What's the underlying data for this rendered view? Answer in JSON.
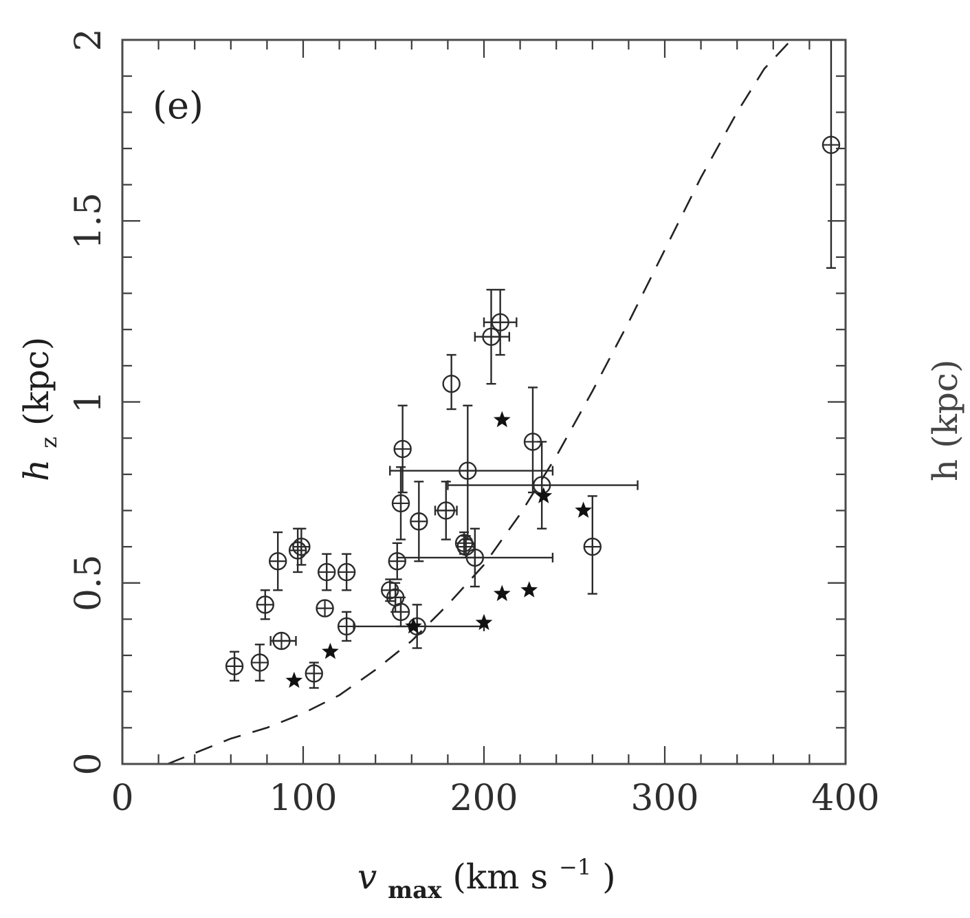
{
  "chart_data": {
    "type": "scatter",
    "panel_label": "(e)",
    "xlabel_main": "v",
    "xlabel_sub": "max",
    "xlabel_units": " (km s",
    "xlabel_sup": "−1",
    "xlabel_close": ")",
    "ylabel_main": "h",
    "ylabel_sub": "z",
    "ylabel_units": " (kpc)",
    "xlim": [
      0,
      400
    ],
    "ylim": [
      0,
      2
    ],
    "x_ticks": [
      0,
      100,
      200,
      300,
      400
    ],
    "x_tick_labels": [
      "0",
      "100",
      "200",
      "300",
      "400"
    ],
    "y_ticks": [
      0,
      0.5,
      1,
      1.5,
      2
    ],
    "y_tick_labels": [
      "0",
      "0.5",
      "1",
      "1.5",
      "2"
    ],
    "grid": false,
    "series": [
      {
        "marker": "circle-cross",
        "points": [
          {
            "x": 62,
            "y": 0.27,
            "ylo": 0.23,
            "yhi": 0.31,
            "xlo": null,
            "xhi": null
          },
          {
            "x": 76,
            "y": 0.28,
            "ylo": 0.23,
            "yhi": 0.33,
            "xlo": null,
            "xhi": null
          },
          {
            "x": 79,
            "y": 0.44,
            "ylo": 0.4,
            "yhi": 0.48,
            "xlo": null,
            "xhi": null
          },
          {
            "x": 86,
            "y": 0.56,
            "ylo": 0.48,
            "yhi": 0.64,
            "xlo": null,
            "xhi": null
          },
          {
            "x": 88,
            "y": 0.34,
            "ylo": null,
            "yhi": null,
            "xlo": 82,
            "xhi": 96
          },
          {
            "x": 97,
            "y": 0.59,
            "ylo": 0.53,
            "yhi": 0.65,
            "xlo": null,
            "xhi": null
          },
          {
            "x": 99,
            "y": 0.6,
            "ylo": 0.55,
            "yhi": 0.65,
            "xlo": null,
            "xhi": null
          },
          {
            "x": 106,
            "y": 0.25,
            "ylo": 0.21,
            "yhi": 0.28,
            "xlo": null,
            "xhi": null
          },
          {
            "x": 112,
            "y": 0.43,
            "ylo": null,
            "yhi": null,
            "xlo": null,
            "xhi": null
          },
          {
            "x": 113,
            "y": 0.53,
            "ylo": 0.48,
            "yhi": 0.58,
            "xlo": null,
            "xhi": null
          },
          {
            "x": 124,
            "y": 0.53,
            "ylo": 0.48,
            "yhi": 0.58,
            "xlo": null,
            "xhi": null
          },
          {
            "x": 124,
            "y": 0.38,
            "ylo": 0.34,
            "yhi": 0.42,
            "xlo": 128,
            "xhi": 200
          },
          {
            "x": 148,
            "y": 0.48,
            "ylo": 0.45,
            "yhi": 0.51,
            "xlo": null,
            "xhi": null
          },
          {
            "x": 151,
            "y": 0.46,
            "ylo": 0.42,
            "yhi": 0.5,
            "xlo": null,
            "xhi": null
          },
          {
            "x": 152,
            "y": 0.56,
            "ylo": 0.51,
            "yhi": 0.61,
            "xlo": null,
            "xhi": null
          },
          {
            "x": 154,
            "y": 0.42,
            "ylo": 0.38,
            "yhi": 0.46,
            "xlo": null,
            "xhi": null
          },
          {
            "x": 154,
            "y": 0.72,
            "ylo": 0.62,
            "yhi": 0.82,
            "xlo": null,
            "xhi": null
          },
          {
            "x": 155,
            "y": 0.87,
            "ylo": 0.75,
            "yhi": 0.99,
            "xlo": null,
            "xhi": null
          },
          {
            "x": 163,
            "y": 0.38,
            "ylo": 0.32,
            "yhi": 0.44,
            "xlo": null,
            "xhi": null
          },
          {
            "x": 164,
            "y": 0.67,
            "ylo": 0.56,
            "yhi": 0.78,
            "xlo": null,
            "xhi": null
          },
          {
            "x": 179,
            "y": 0.7,
            "ylo": 0.62,
            "yhi": 0.78,
            "xlo": 173,
            "xhi": 185
          },
          {
            "x": 189,
            "y": 0.61,
            "ylo": 0.58,
            "yhi": 0.64,
            "xlo": null,
            "xhi": null
          },
          {
            "x": 190,
            "y": 0.6,
            "ylo": 0.57,
            "yhi": 0.63,
            "xlo": null,
            "xhi": null
          },
          {
            "x": 191,
            "y": 0.81,
            "ylo": 0.62,
            "yhi": 0.99,
            "xlo": 148,
            "xhi": 238
          },
          {
            "x": 195,
            "y": 0.57,
            "ylo": 0.49,
            "yhi": 0.65,
            "xlo": 152,
            "xhi": 238
          },
          {
            "x": 204,
            "y": 1.18,
            "ylo": 1.05,
            "yhi": 1.31,
            "xlo": 195,
            "xhi": 214
          },
          {
            "x": 209,
            "y": 1.22,
            "ylo": 1.13,
            "yhi": 1.31,
            "xlo": 200,
            "xhi": 218
          },
          {
            "x": 227,
            "y": 0.89,
            "ylo": 0.75,
            "yhi": 1.04,
            "xlo": null,
            "xhi": null
          },
          {
            "x": 232,
            "y": 0.77,
            "ylo": 0.65,
            "yhi": 0.89,
            "xlo": 180,
            "xhi": 285
          },
          {
            "x": 260,
            "y": 0.6,
            "ylo": 0.47,
            "yhi": 0.74,
            "xlo": null,
            "xhi": null
          },
          {
            "x": 392,
            "y": 1.71,
            "ylo": 1.37,
            "yhi": 2.0,
            "xlo": null,
            "xhi": null
          }
        ]
      },
      {
        "marker": "circle",
        "points": [
          {
            "x": 182,
            "y": 1.05,
            "ylo": 0.98,
            "yhi": 1.13
          }
        ]
      },
      {
        "marker": "star",
        "points": [
          {
            "x": 95,
            "y": 0.23
          },
          {
            "x": 115,
            "y": 0.31
          },
          {
            "x": 161,
            "y": 0.38
          },
          {
            "x": 200,
            "y": 0.39
          },
          {
            "x": 210,
            "y": 0.47
          },
          {
            "x": 210,
            "y": 0.95
          },
          {
            "x": 225,
            "y": 0.48
          },
          {
            "x": 233,
            "y": 0.74
          },
          {
            "x": 255,
            "y": 0.7
          }
        ]
      },
      {
        "marker": "dashed-line",
        "points": [
          {
            "x": 25,
            "y": 0.0
          },
          {
            "x": 40,
            "y": 0.03
          },
          {
            "x": 60,
            "y": 0.07
          },
          {
            "x": 80,
            "y": 0.1
          },
          {
            "x": 100,
            "y": 0.14
          },
          {
            "x": 120,
            "y": 0.19
          },
          {
            "x": 140,
            "y": 0.26
          },
          {
            "x": 160,
            "y": 0.34
          },
          {
            "x": 180,
            "y": 0.44
          },
          {
            "x": 200,
            "y": 0.55
          },
          {
            "x": 220,
            "y": 0.69
          },
          {
            "x": 240,
            "y": 0.85
          },
          {
            "x": 260,
            "y": 1.03
          },
          {
            "x": 280,
            "y": 1.22
          },
          {
            "x": 300,
            "y": 1.42
          },
          {
            "x": 320,
            "y": 1.62
          },
          {
            "x": 340,
            "y": 1.8
          },
          {
            "x": 355,
            "y": 1.92
          },
          {
            "x": 370,
            "y": 2.0
          }
        ]
      }
    ]
  },
  "edge_fragment": {
    "text": "h (kpc)"
  }
}
